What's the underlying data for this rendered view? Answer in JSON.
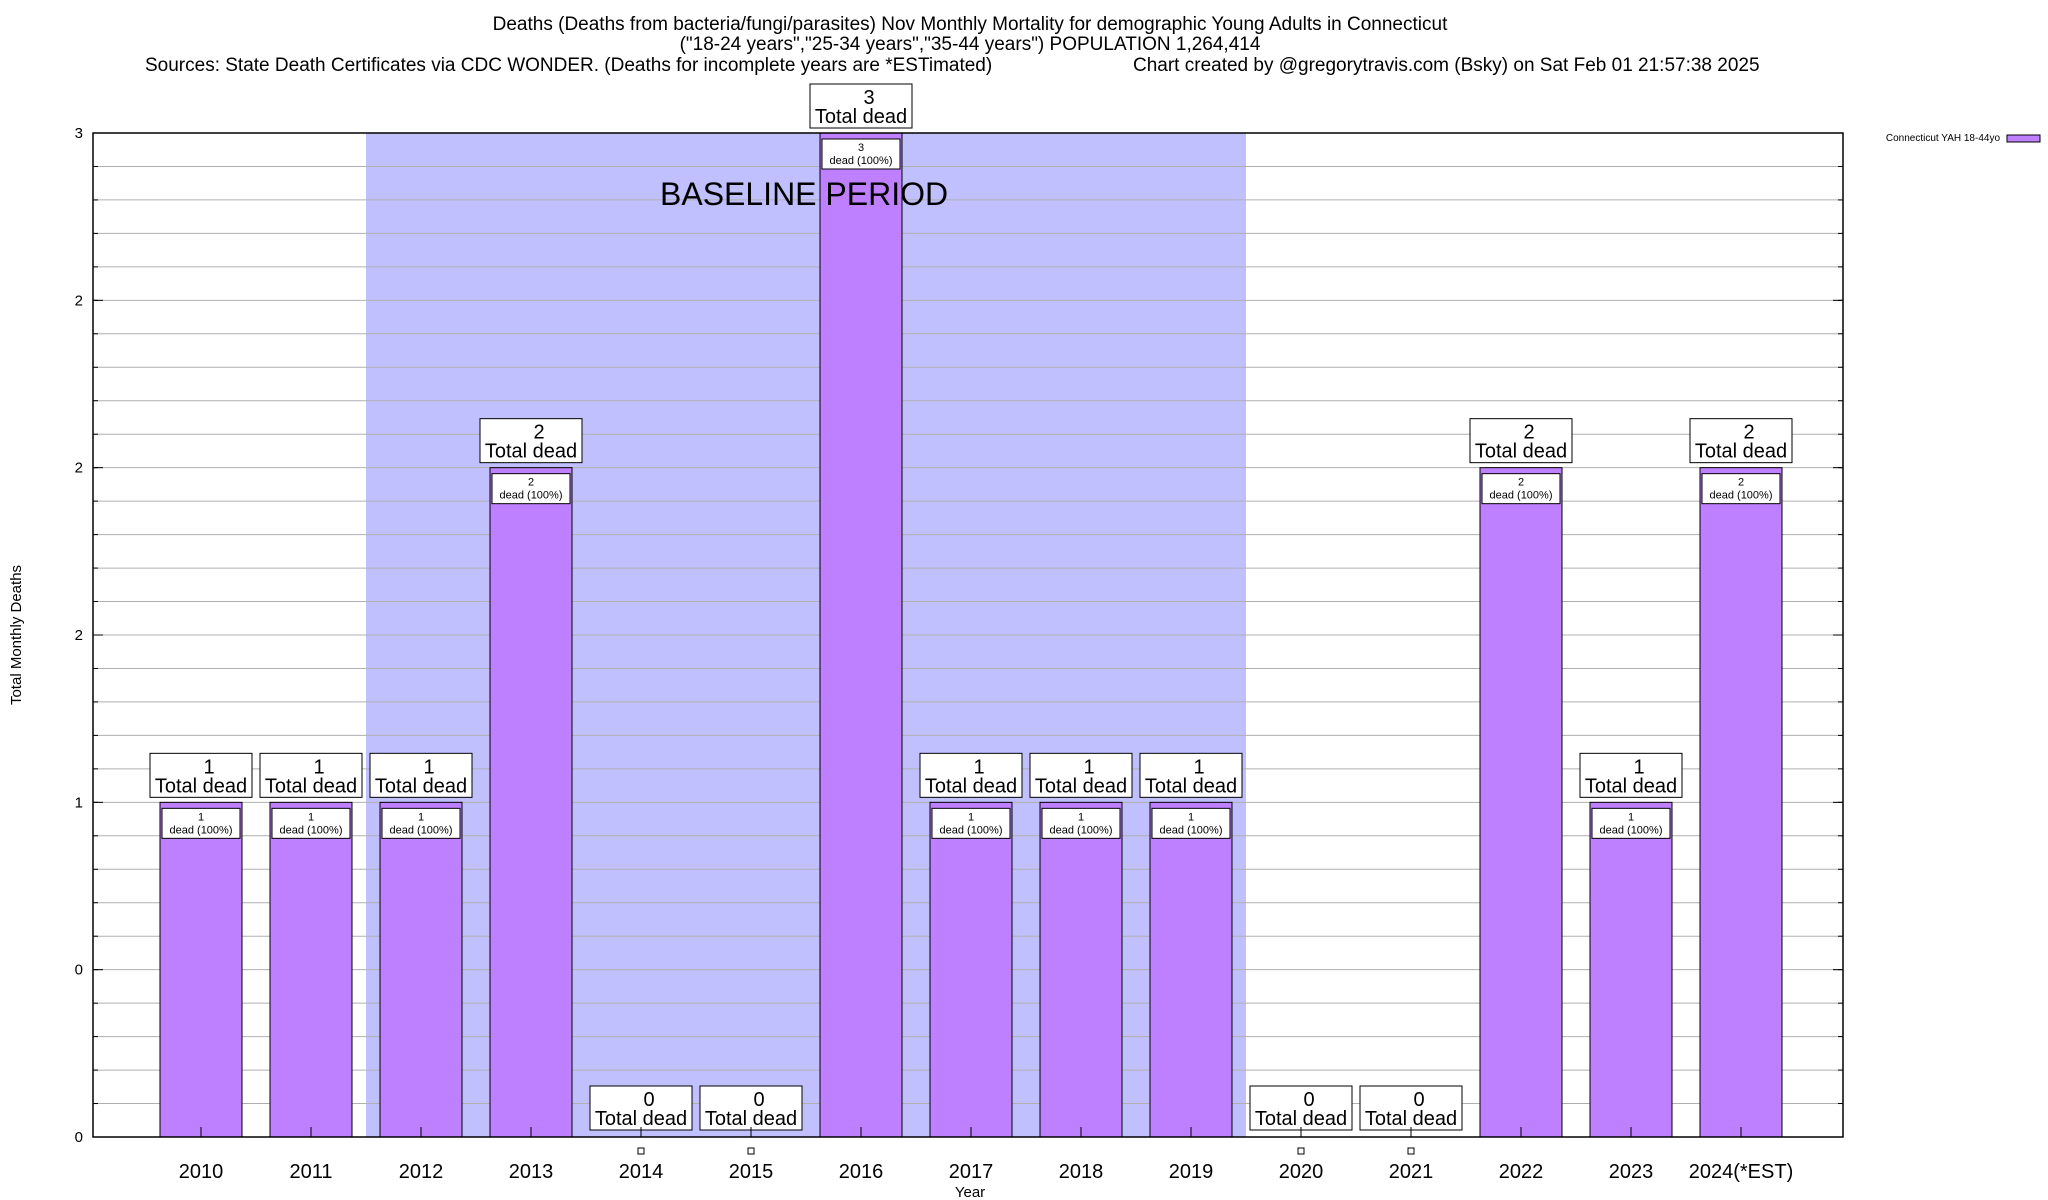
{
  "chart_data": {
    "type": "bar",
    "title_lines": [
      "Deaths (Deaths from bacteria/fungi/parasites) Nov Monthly Mortality for demographic Young Adults in Connecticut",
      "(\"18-24 years\",\"25-34 years\",\"35-44 years\") POPULATION 1,264,414",
      "Sources: State Death Certificates via CDC WONDER. (Deaths for incomplete years are *ESTimated)"
    ],
    "credit": "Chart created by @gregorytravis.com (Bsky) on Sat Feb 01 21:57:38 2025",
    "xlabel": "Year",
    "ylabel": "Total Monthly Deaths",
    "ylim": [
      0,
      3
    ],
    "y_tick_values": [
      0,
      0.5,
      1,
      1.5,
      2,
      2.5,
      3
    ],
    "y_tick_labels": [
      "0",
      "0",
      "1",
      "2",
      "2",
      "2",
      "3"
    ],
    "grid": true,
    "legend": {
      "label": "Connecticut YAH 18-44yo",
      "placement": "top-right",
      "color": "#bf80ff"
    },
    "baseline": {
      "label": "BASELINE PERIOD",
      "start": "2012",
      "end": "2019",
      "color": "#c0c0ff"
    },
    "bar_color": "#bf80ff",
    "categories": [
      "2010",
      "2011",
      "2012",
      "2013",
      "2014",
      "2015",
      "2016",
      "2017",
      "2018",
      "2019",
      "2020",
      "2021",
      "2022",
      "2023",
      "2024(*EST)"
    ],
    "values": [
      1,
      1,
      1,
      2,
      0,
      0,
      3,
      1,
      1,
      1,
      0,
      0,
      2,
      1,
      2
    ],
    "total_labels": [
      "1",
      "1",
      "1",
      "2",
      "0",
      "0",
      "3",
      "1",
      "1",
      "1",
      "0",
      "0",
      "2",
      "1",
      "2"
    ],
    "total_suffix": "Total dead",
    "inner_labels": [
      "1",
      "1",
      "1",
      "2",
      "",
      "",
      "3",
      "1",
      "1",
      "1",
      "",
      "",
      "2",
      "1",
      "2"
    ],
    "inner_suffix": "dead (100%)"
  }
}
